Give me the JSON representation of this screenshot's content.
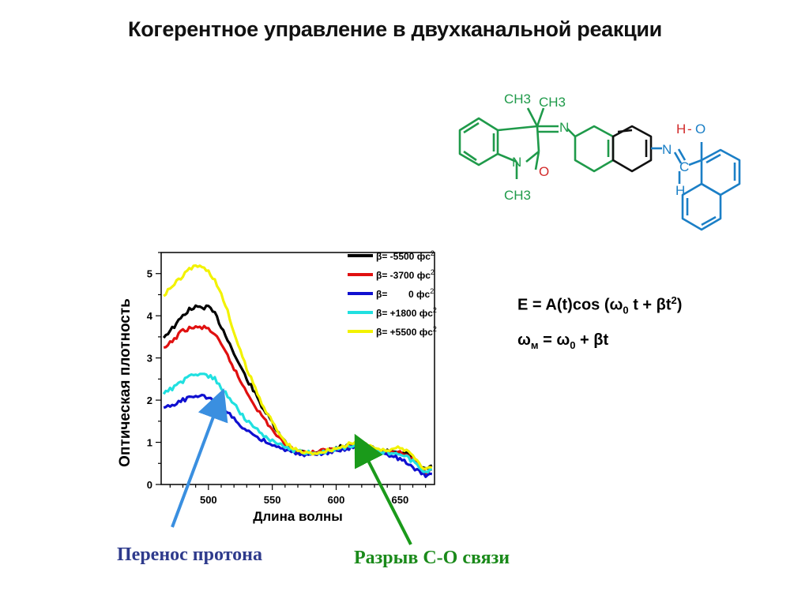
{
  "slide": {
    "title": "Когерентное управление в двухканальной реакции"
  },
  "molecule": {
    "labels": {
      "ch3_a": "CH3",
      "ch3_b": "CH3",
      "ch3_n": "CH3",
      "n_ring": "N",
      "n_imine": "N",
      "o_ring": "O",
      "n_indoline": "N",
      "h_oh": "H",
      "dash": "-",
      "o_oh": "O",
      "c_imine": "C",
      "h_imine": "H"
    },
    "colors": {
      "indoline": "#1f9a4a",
      "oxazine_oxygen": "#d22b2b",
      "core": "#111111",
      "naphthol": "#1b7fc6",
      "hydroxyl_h": "#d22b2b"
    }
  },
  "formulas": {
    "eq1": {
      "lhs": "E = A(t)cos (",
      "omega": "ω",
      "sub": "0",
      "mid": " t + ",
      "beta": "β",
      "t": "t",
      "sup": "2",
      "close": ")"
    },
    "eq2": {
      "omega": "ω",
      "sub_m": "м",
      "eq": " = ",
      "omega0": "ω",
      "sub0": "0",
      "plus": " + ",
      "beta": "β",
      "t": "t"
    }
  },
  "annotations": {
    "proton_transfer": "Перенос протона",
    "bond_break": "Разрыв С-О связи",
    "proton_arrow_color": "#3a8fe0",
    "bond_arrow_color": "#1a9a1a"
  },
  "chart_data": {
    "type": "line",
    "title": "",
    "xlabel": "Длина волны",
    "ylabel": "Оптическая плотность",
    "xlim": [
      463,
      677
    ],
    "ylim": [
      0,
      5.5
    ],
    "xticks": [
      500,
      550,
      600,
      650
    ],
    "yticks": [
      0,
      1,
      2,
      3,
      4,
      5
    ],
    "grid": false,
    "legend_position": "top-right",
    "x": [
      465,
      470,
      475,
      480,
      485,
      490,
      495,
      500,
      505,
      510,
      515,
      520,
      525,
      530,
      535,
      540,
      545,
      550,
      555,
      560,
      565,
      570,
      575,
      580,
      585,
      590,
      595,
      600,
      605,
      610,
      615,
      620,
      625,
      630,
      635,
      640,
      645,
      650,
      655,
      660,
      665,
      670,
      675
    ],
    "series": [
      {
        "name": "β= -5500 фс2",
        "color": "#000000",
        "values": [
          3.5,
          3.65,
          3.8,
          4.0,
          4.15,
          4.2,
          4.2,
          4.2,
          4.05,
          3.75,
          3.45,
          3.1,
          2.8,
          2.5,
          2.25,
          1.95,
          1.7,
          1.45,
          1.2,
          1.0,
          0.88,
          0.8,
          0.77,
          0.75,
          0.78,
          0.8,
          0.82,
          0.85,
          0.9,
          0.95,
          0.97,
          0.95,
          0.9,
          0.85,
          0.8,
          0.78,
          0.8,
          0.78,
          0.72,
          0.62,
          0.45,
          0.35,
          0.45
        ]
      },
      {
        "name": "β= -3700 фс2",
        "color": "#e01010",
        "values": [
          3.2,
          3.35,
          3.5,
          3.65,
          3.7,
          3.72,
          3.72,
          3.7,
          3.55,
          3.3,
          3.05,
          2.75,
          2.45,
          2.2,
          1.95,
          1.7,
          1.5,
          1.3,
          1.1,
          0.95,
          0.85,
          0.78,
          0.75,
          0.75,
          0.77,
          0.8,
          0.82,
          0.85,
          0.88,
          0.92,
          0.95,
          0.93,
          0.88,
          0.85,
          0.8,
          0.78,
          0.78,
          0.75,
          0.7,
          0.6,
          0.45,
          0.3,
          0.35
        ]
      },
      {
        "name": "β=        0 фс2",
        "color": "#1010d0",
        "values": [
          1.8,
          1.85,
          1.92,
          2.0,
          2.05,
          2.08,
          2.08,
          2.07,
          2.0,
          1.85,
          1.7,
          1.55,
          1.4,
          1.3,
          1.2,
          1.1,
          1.02,
          0.95,
          0.88,
          0.82,
          0.78,
          0.74,
          0.72,
          0.72,
          0.73,
          0.75,
          0.77,
          0.8,
          0.83,
          0.86,
          0.88,
          0.86,
          0.82,
          0.78,
          0.74,
          0.7,
          0.66,
          0.6,
          0.52,
          0.42,
          0.3,
          0.2,
          0.25
        ]
      },
      {
        "name": "β= +1800 фс2",
        "color": "#20e0e0",
        "values": [
          2.15,
          2.25,
          2.35,
          2.45,
          2.55,
          2.6,
          2.6,
          2.58,
          2.5,
          2.3,
          2.1,
          1.9,
          1.7,
          1.52,
          1.38,
          1.25,
          1.13,
          1.03,
          0.95,
          0.88,
          0.83,
          0.79,
          0.76,
          0.75,
          0.76,
          0.78,
          0.8,
          0.83,
          0.87,
          0.9,
          0.92,
          0.9,
          0.86,
          0.82,
          0.78,
          0.75,
          0.73,
          0.7,
          0.65,
          0.55,
          0.42,
          0.3,
          0.35
        ]
      },
      {
        "name": "β= +5500 фс2",
        "color": "#f2f200",
        "values": [
          4.5,
          4.65,
          4.8,
          4.95,
          5.1,
          5.2,
          5.15,
          5.05,
          4.85,
          4.5,
          4.1,
          3.6,
          3.15,
          2.75,
          2.4,
          2.05,
          1.75,
          1.48,
          1.22,
          1.02,
          0.88,
          0.8,
          0.76,
          0.74,
          0.76,
          0.79,
          0.82,
          0.86,
          0.9,
          0.95,
          0.98,
          0.96,
          0.92,
          0.88,
          0.84,
          0.82,
          0.84,
          0.86,
          0.82,
          0.7,
          0.5,
          0.35,
          0.4
        ]
      }
    ]
  }
}
